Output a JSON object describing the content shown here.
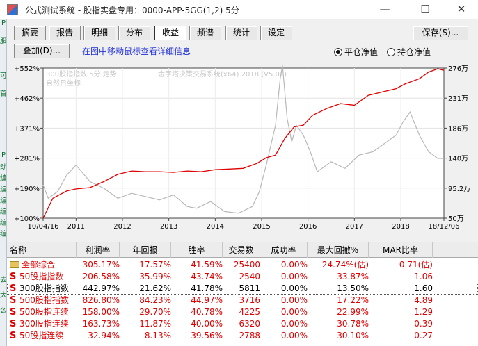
{
  "window": {
    "title": "公式测试系统 - 股指实盘专用：0000-APP-5GG(1,2) 5分",
    "min_glyph": "—",
    "max_glyph": "☐",
    "close_glyph": "✕"
  },
  "tabs": [
    {
      "label": "摘要"
    },
    {
      "label": "报告"
    },
    {
      "label": "明细"
    },
    {
      "label": "分布"
    },
    {
      "label": "收益"
    },
    {
      "label": "频谱"
    },
    {
      "label": "统计"
    },
    {
      "label": "设定"
    }
  ],
  "active_tab": "收益",
  "toolbar": {
    "save_label": "保存(S)...",
    "overlay_label": "叠加(D)...",
    "hint": "在图中移动鼠标查看详细信息",
    "radio_flat": "平仓净值",
    "radio_hold": "持仓净值",
    "selected_radio": "平仓净值"
  },
  "chart_data": {
    "type": "line",
    "legend_lines": [
      "300股指指数 5分 走势",
      "自然日坐标"
    ],
    "watermark": "金字塔决策交易系统(x64) 2018 (V5.01)",
    "x_ticks": [
      "10/04/16",
      "2011",
      "2012",
      "2013",
      "2014",
      "2015",
      "2016",
      "2017",
      "2018",
      "18/12/06"
    ],
    "left_ticks": [
      "+552%",
      "+462%",
      "+371%",
      "+281%",
      "+190%",
      "+100%"
    ],
    "right_ticks": [
      "276万",
      "231万",
      "186万",
      "140万",
      "95.2万",
      "50万"
    ],
    "equity_series": {
      "name": "平仓净值",
      "color": "#e00000",
      "x": [
        2010.29,
        2010.5,
        2010.8,
        2011.0,
        2011.3,
        2011.6,
        2011.9,
        2012.2,
        2012.5,
        2012.8,
        2013.1,
        2013.4,
        2013.7,
        2014.0,
        2014.3,
        2014.6,
        2014.9,
        2015.1,
        2015.3,
        2015.5,
        2015.7,
        2015.9,
        2016.1,
        2016.4,
        2016.7,
        2017.0,
        2017.3,
        2017.6,
        2017.9,
        2018.1,
        2018.4,
        2018.6,
        2018.8,
        2018.93
      ],
      "y": [
        100,
        160,
        182,
        188,
        192,
        210,
        232,
        242,
        240,
        240,
        238,
        242,
        240,
        246,
        248,
        250,
        265,
        282,
        290,
        340,
        375,
        380,
        410,
        430,
        445,
        440,
        470,
        480,
        490,
        505,
        520,
        540,
        550,
        545
      ]
    },
    "index_series": {
      "name": "300股指指数",
      "color": "#b8b8b8",
      "x": [
        2010.29,
        2010.4,
        2010.6,
        2010.8,
        2011.0,
        2011.3,
        2011.6,
        2011.9,
        2012.2,
        2012.5,
        2012.8,
        2013.1,
        2013.4,
        2013.6,
        2013.9,
        2014.2,
        2014.5,
        2014.8,
        2014.95,
        2015.1,
        2015.3,
        2015.4,
        2015.45,
        2015.55,
        2015.65,
        2015.75,
        2015.9,
        2016.05,
        2016.2,
        2016.5,
        2016.8,
        2017.1,
        2017.4,
        2017.7,
        2017.9,
        2018.05,
        2018.2,
        2018.4,
        2018.6,
        2018.8,
        2018.93
      ],
      "y": [
        200,
        160,
        180,
        230,
        260,
        210,
        190,
        160,
        175,
        165,
        155,
        170,
        135,
        130,
        150,
        120,
        115,
        135,
        180,
        260,
        380,
        520,
        560,
        400,
        330,
        380,
        350,
        300,
        240,
        270,
        250,
        290,
        300,
        330,
        350,
        390,
        420,
        350,
        300,
        280,
        280
      ]
    },
    "ylim_left": [
      100,
      552
    ],
    "xlim": [
      2010.29,
      2018.93
    ],
    "grid": true
  },
  "table": {
    "headers": [
      "名称",
      "利润率",
      "年回报",
      "胜率",
      "交易数",
      "成功率",
      "最大回撤%",
      "MAR比率"
    ],
    "rows": [
      {
        "icon": "folder-icon",
        "name": "全部综合",
        "profit": "305.17%",
        "annual": "17.57%",
        "win": "41.59%",
        "trades": "25400",
        "success": "0.00%",
        "dd": "24.74%(估)",
        "mar": "0.71(估)",
        "color": "red"
      },
      {
        "icon": "s-icon",
        "name": "50股指指数",
        "profit": "206.58%",
        "annual": "35.99%",
        "win": "43.74%",
        "trades": "2540",
        "success": "0.00%",
        "dd": "33.87%",
        "mar": "1.06",
        "color": "red"
      },
      {
        "icon": "s-icon",
        "name": "300股指指数",
        "profit": "442.97%",
        "annual": "21.62%",
        "win": "41.78%",
        "trades": "5811",
        "success": "0.00%",
        "dd": "13.50%",
        "mar": "1.60",
        "color": "blk"
      },
      {
        "icon": "s-icon",
        "name": "500股指指数",
        "profit": "826.80%",
        "annual": "84.23%",
        "win": "44.97%",
        "trades": "3716",
        "success": "0.00%",
        "dd": "17.22%",
        "mar": "4.89",
        "color": "red"
      },
      {
        "icon": "s-icon",
        "name": "500股指连续",
        "profit": "158.00%",
        "annual": "29.70%",
        "win": "40.78%",
        "trades": "4225",
        "success": "0.00%",
        "dd": "22.99%",
        "mar": "1.29",
        "color": "red"
      },
      {
        "icon": "s-icon",
        "name": "300股指连续",
        "profit": "163.73%",
        "annual": "11.87%",
        "win": "40.00%",
        "trades": "6320",
        "success": "0.00%",
        "dd": "30.78%",
        "mar": "0.39",
        "color": "red"
      },
      {
        "icon": "s-icon",
        "name": "50股指连续",
        "profit": "32.94%",
        "annual": "8.13%",
        "win": "39.56%",
        "trades": "2788",
        "success": "0.00%",
        "dd": "30.10%",
        "mar": "0.27",
        "color": "red"
      }
    ]
  },
  "background_window_glyphs": [
    "P",
    "股",
    "可",
    "首",
    "P",
    "动",
    "编",
    "编",
    "编",
    "编",
    "编",
    "编",
    "去",
    "大",
    "么"
  ]
}
